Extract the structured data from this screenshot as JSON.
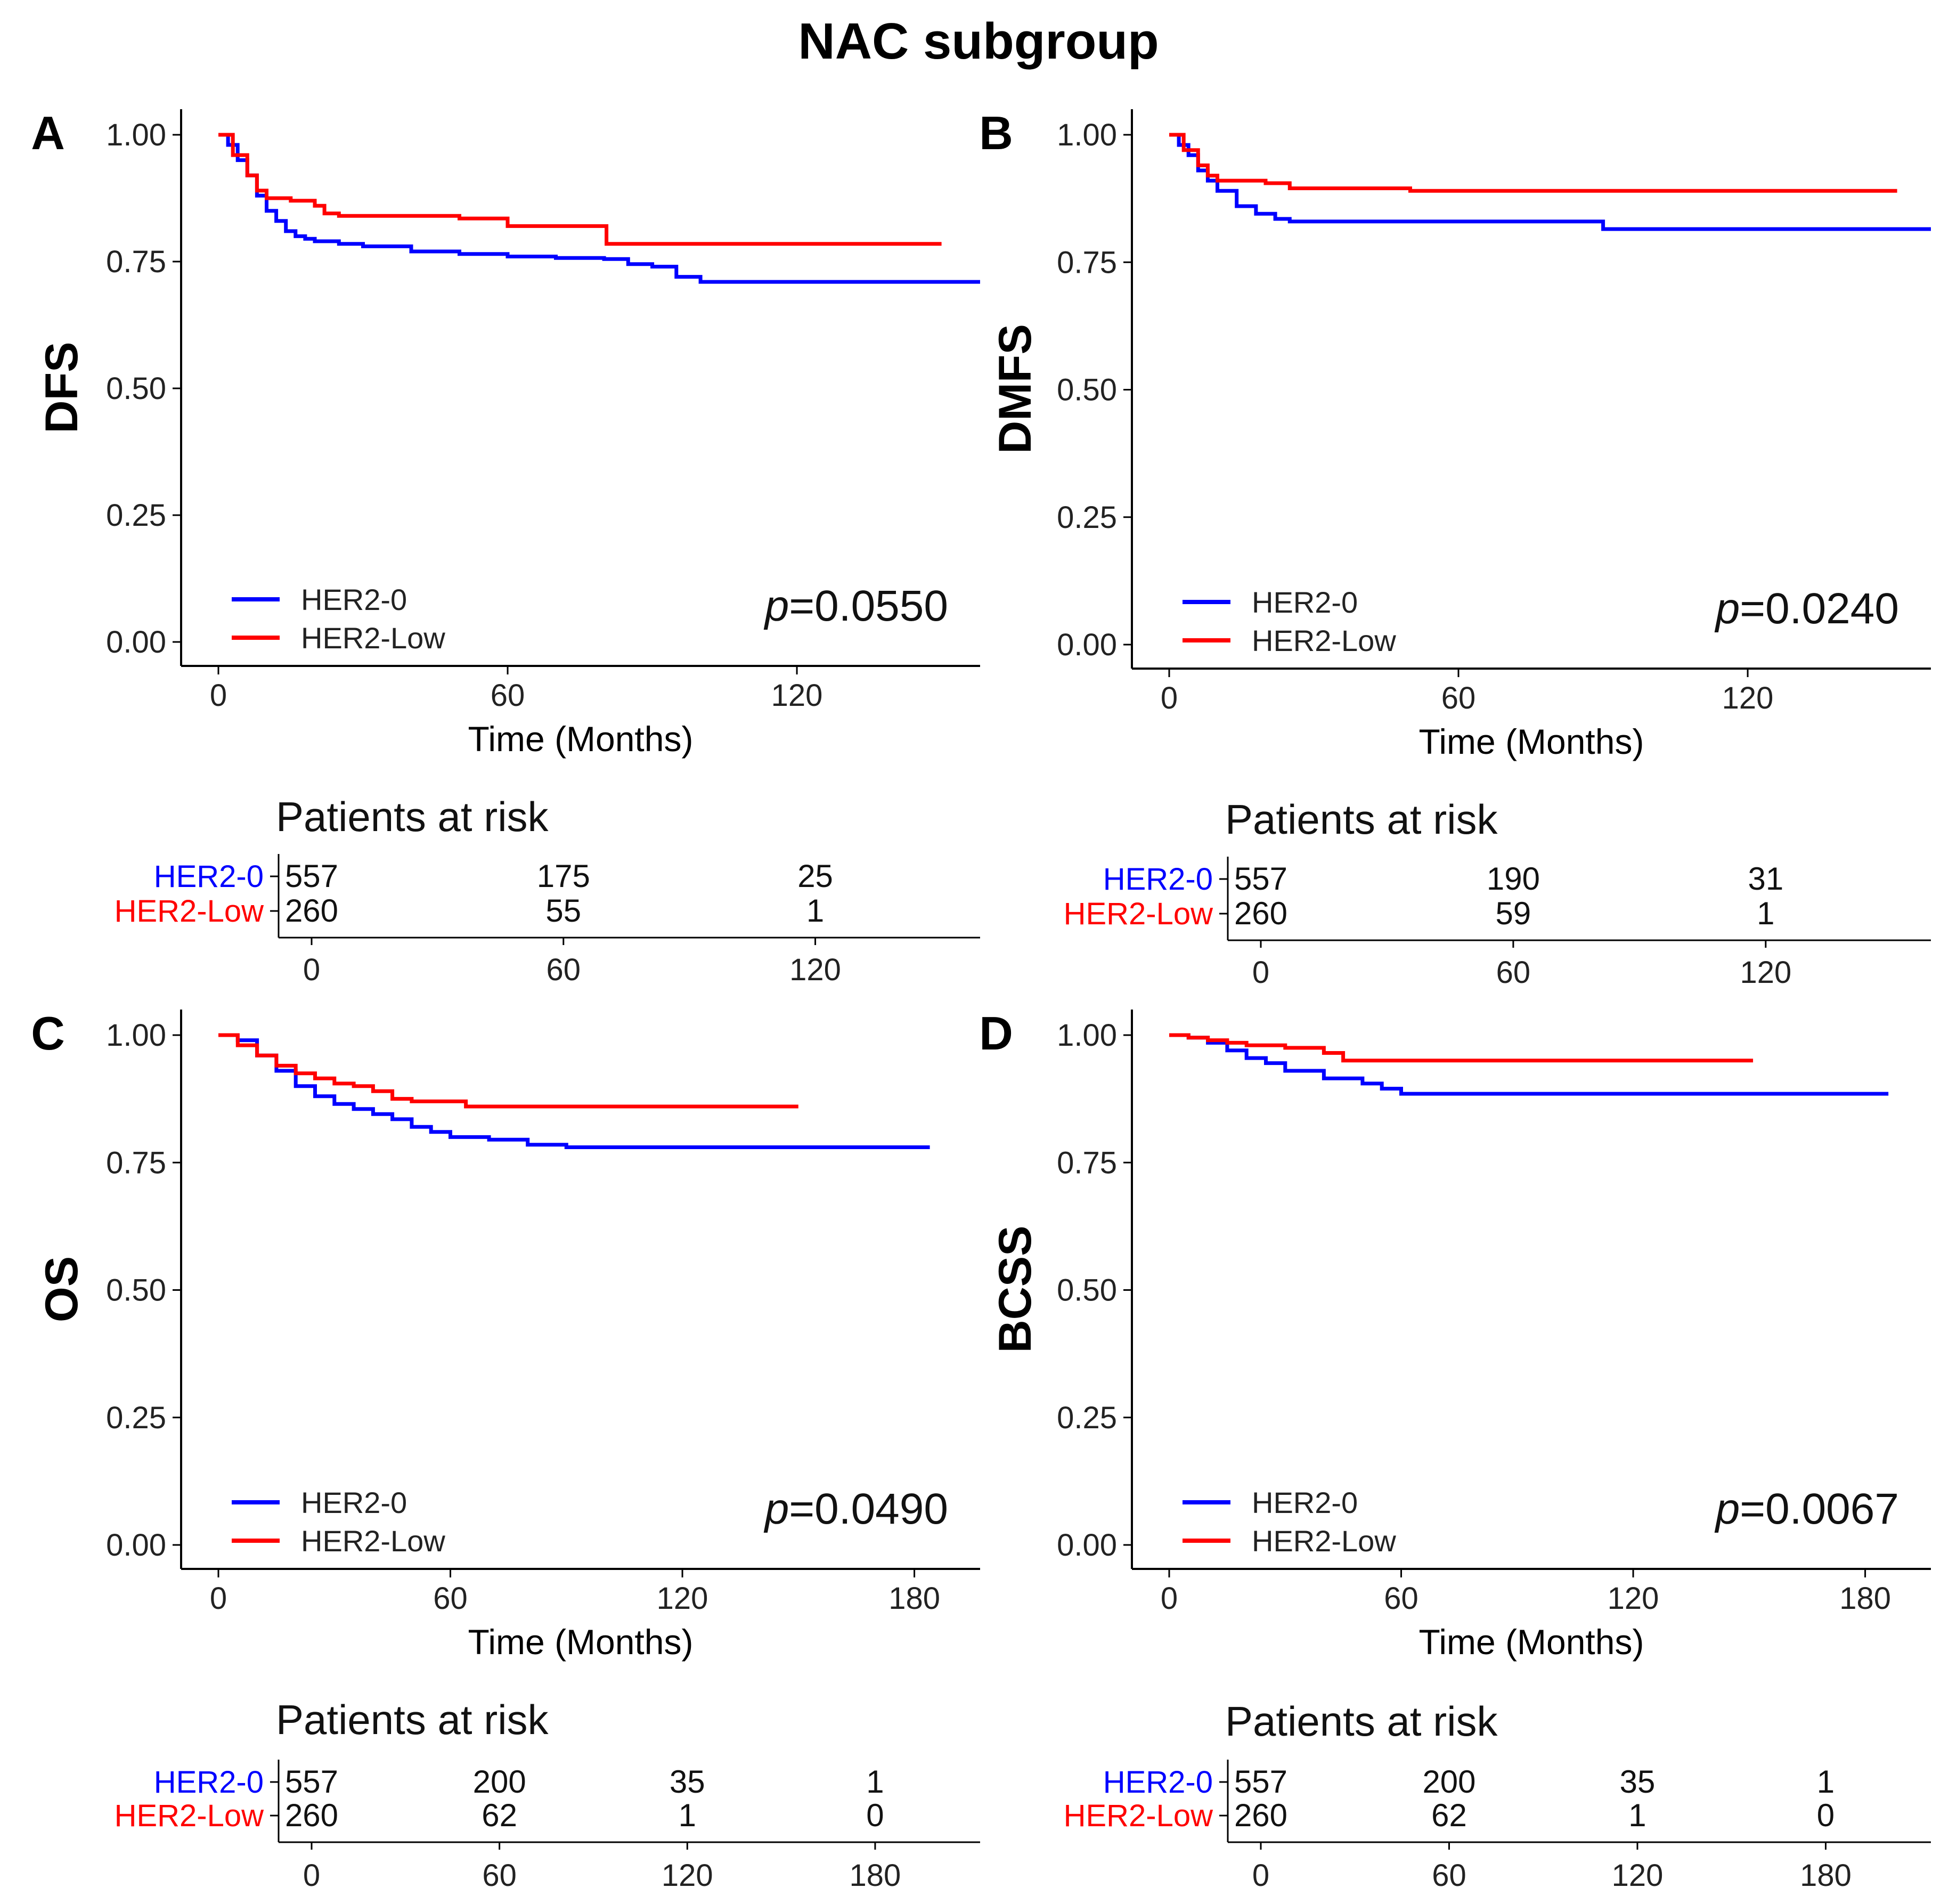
{
  "figure_title": "NAC subgroup",
  "colors": {
    "her2_0": "#0000FF",
    "her2_low": "#FF0000",
    "axis": "#000000"
  },
  "chart_data": [
    {
      "type": "line",
      "panel": "A",
      "ylabel": "DFS",
      "xlabel": "Time (Months)",
      "xlim": [
        0,
        158
      ],
      "ylim": [
        0,
        1
      ],
      "x_ticks": [
        "0",
        "60",
        "120"
      ],
      "y_ticks": [
        "0.00",
        "0.25",
        "0.50",
        "0.75",
        "1.00"
      ],
      "p_prefix": "p",
      "p_value": "=0.0550",
      "legend": [
        "HER2-0",
        "HER2-Low"
      ],
      "series": [
        {
          "name": "HER2-0",
          "x": [
            0,
            2,
            4,
            6,
            8,
            10,
            12,
            14,
            16,
            18,
            20,
            25,
            30,
            40,
            50,
            60,
            70,
            80,
            85,
            90,
            95,
            100,
            110,
            120,
            130,
            140,
            158
          ],
          "values": [
            1.0,
            0.98,
            0.95,
            0.92,
            0.88,
            0.85,
            0.83,
            0.81,
            0.8,
            0.795,
            0.79,
            0.785,
            0.78,
            0.77,
            0.765,
            0.76,
            0.757,
            0.755,
            0.745,
            0.74,
            0.72,
            0.71,
            0.71,
            0.71,
            0.71,
            0.71,
            0.71
          ]
        },
        {
          "name": "HER2-Low",
          "x": [
            0,
            3,
            6,
            8,
            10,
            15,
            20,
            22,
            25,
            30,
            40,
            50,
            60,
            70,
            80,
            80.5,
            90,
            100,
            120,
            140,
            150
          ],
          "values": [
            1.0,
            0.96,
            0.92,
            0.89,
            0.875,
            0.87,
            0.86,
            0.845,
            0.84,
            0.84,
            0.84,
            0.835,
            0.82,
            0.82,
            0.82,
            0.785,
            0.785,
            0.785,
            0.785,
            0.785,
            0.785
          ]
        }
      ],
      "risk_table": {
        "title": "Patients at risk",
        "times": [
          "0",
          "60",
          "120"
        ],
        "rows": [
          {
            "name": "HER2-0",
            "counts": [
              "557",
              "175",
              "25"
            ]
          },
          {
            "name": "HER2-Low",
            "counts": [
              "260",
              "55",
              "1"
            ]
          }
        ]
      }
    },
    {
      "type": "line",
      "panel": "B",
      "ylabel": "DMFS",
      "xlabel": "Time (Months)",
      "xlim": [
        0,
        158
      ],
      "ylim": [
        0,
        1
      ],
      "x_ticks": [
        "0",
        "60",
        "120"
      ],
      "y_ticks": [
        "0.00",
        "0.25",
        "0.50",
        "0.75",
        "1.00"
      ],
      "p_prefix": "p",
      "p_value": "=0.0240",
      "legend": [
        "HER2-0",
        "HER2-Low"
      ],
      "series": [
        {
          "name": "HER2-0",
          "x": [
            0,
            2,
            4,
            6,
            8,
            10,
            14,
            18,
            22,
            25,
            30,
            40,
            60,
            80,
            90,
            100,
            120,
            140,
            158
          ],
          "values": [
            1.0,
            0.98,
            0.96,
            0.93,
            0.91,
            0.89,
            0.86,
            0.845,
            0.835,
            0.83,
            0.83,
            0.83,
            0.83,
            0.83,
            0.815,
            0.815,
            0.815,
            0.815,
            0.815
          ]
        },
        {
          "name": "HER2-Low",
          "x": [
            0,
            3,
            6,
            8,
            10,
            15,
            20,
            25,
            30,
            40,
            50,
            60,
            80,
            100,
            120,
            140,
            151
          ],
          "values": [
            1.0,
            0.97,
            0.94,
            0.92,
            0.91,
            0.91,
            0.905,
            0.895,
            0.895,
            0.895,
            0.89,
            0.89,
            0.89,
            0.89,
            0.89,
            0.89,
            0.89
          ]
        }
      ],
      "risk_table": {
        "title": "Patients at risk",
        "times": [
          "0",
          "60",
          "120"
        ],
        "rows": [
          {
            "name": "HER2-0",
            "counts": [
              "557",
              "190",
              "31"
            ]
          },
          {
            "name": "HER2-Low",
            "counts": [
              "260",
              "59",
              "1"
            ]
          }
        ]
      }
    },
    {
      "type": "line",
      "panel": "C",
      "ylabel": "OS",
      "xlabel": "Time (Months)",
      "xlim": [
        0,
        197
      ],
      "ylim": [
        0,
        1
      ],
      "x_ticks": [
        "0",
        "60",
        "120",
        "180"
      ],
      "y_ticks": [
        "0.00",
        "0.25",
        "0.50",
        "0.75",
        "1.00"
      ],
      "p_prefix": "p",
      "p_value": "=0.0490",
      "legend": [
        "HER2-0",
        "HER2-Low"
      ],
      "series": [
        {
          "name": "HER2-0",
          "x": [
            0,
            5,
            10,
            15,
            20,
            25,
            30,
            35,
            40,
            45,
            50,
            55,
            60,
            70,
            80,
            90,
            100,
            120,
            150,
            184
          ],
          "values": [
            1.0,
            0.99,
            0.96,
            0.93,
            0.9,
            0.88,
            0.865,
            0.855,
            0.845,
            0.835,
            0.82,
            0.81,
            0.8,
            0.795,
            0.785,
            0.78,
            0.78,
            0.78,
            0.78,
            0.78
          ]
        },
        {
          "name": "HER2-Low",
          "x": [
            0,
            5,
            10,
            15,
            20,
            25,
            30,
            35,
            40,
            45,
            50,
            60,
            64,
            80,
            100,
            120,
            150
          ],
          "values": [
            1.0,
            0.98,
            0.96,
            0.94,
            0.925,
            0.915,
            0.905,
            0.9,
            0.89,
            0.875,
            0.87,
            0.87,
            0.86,
            0.86,
            0.86,
            0.86,
            0.86
          ]
        }
      ],
      "risk_table": {
        "title": "Patients at risk",
        "times": [
          "0",
          "60",
          "120",
          "180"
        ],
        "rows": [
          {
            "name": "HER2-0",
            "counts": [
              "557",
              "200",
              "35",
              "1"
            ]
          },
          {
            "name": "HER2-Low",
            "counts": [
              "260",
              "62",
              "1",
              "0"
            ]
          }
        ]
      }
    },
    {
      "type": "line",
      "panel": "D",
      "ylabel": "BCSS",
      "xlabel": "Time (Months)",
      "xlim": [
        0,
        197
      ],
      "ylim": [
        0,
        1
      ],
      "x_ticks": [
        "0",
        "60",
        "120",
        "180"
      ],
      "y_ticks": [
        "0.00",
        "0.25",
        "0.50",
        "0.75",
        "1.00"
      ],
      "p_prefix": "p",
      "p_value": "=0.0067",
      "legend": [
        "HER2-0",
        "HER2-Low"
      ],
      "series": [
        {
          "name": "HER2-0",
          "x": [
            0,
            5,
            10,
            15,
            20,
            25,
            30,
            40,
            50,
            55,
            60,
            80,
            100,
            120,
            150,
            186
          ],
          "values": [
            1.0,
            0.995,
            0.985,
            0.97,
            0.955,
            0.945,
            0.93,
            0.915,
            0.905,
            0.895,
            0.885,
            0.885,
            0.885,
            0.885,
            0.885,
            0.885
          ]
        },
        {
          "name": "HER2-Low",
          "x": [
            0,
            5,
            10,
            15,
            20,
            30,
            40,
            45,
            60,
            80,
            100,
            120,
            151
          ],
          "values": [
            1.0,
            0.995,
            0.99,
            0.985,
            0.98,
            0.975,
            0.965,
            0.95,
            0.95,
            0.95,
            0.95,
            0.95,
            0.95
          ]
        }
      ],
      "risk_table": {
        "title": "Patients at risk",
        "times": [
          "0",
          "60",
          "120",
          "180"
        ],
        "rows": [
          {
            "name": "HER2-0",
            "counts": [
              "557",
              "200",
              "35",
              "1"
            ]
          },
          {
            "name": "HER2-Low",
            "counts": [
              "260",
              "62",
              "1",
              "0"
            ]
          }
        ]
      }
    }
  ]
}
